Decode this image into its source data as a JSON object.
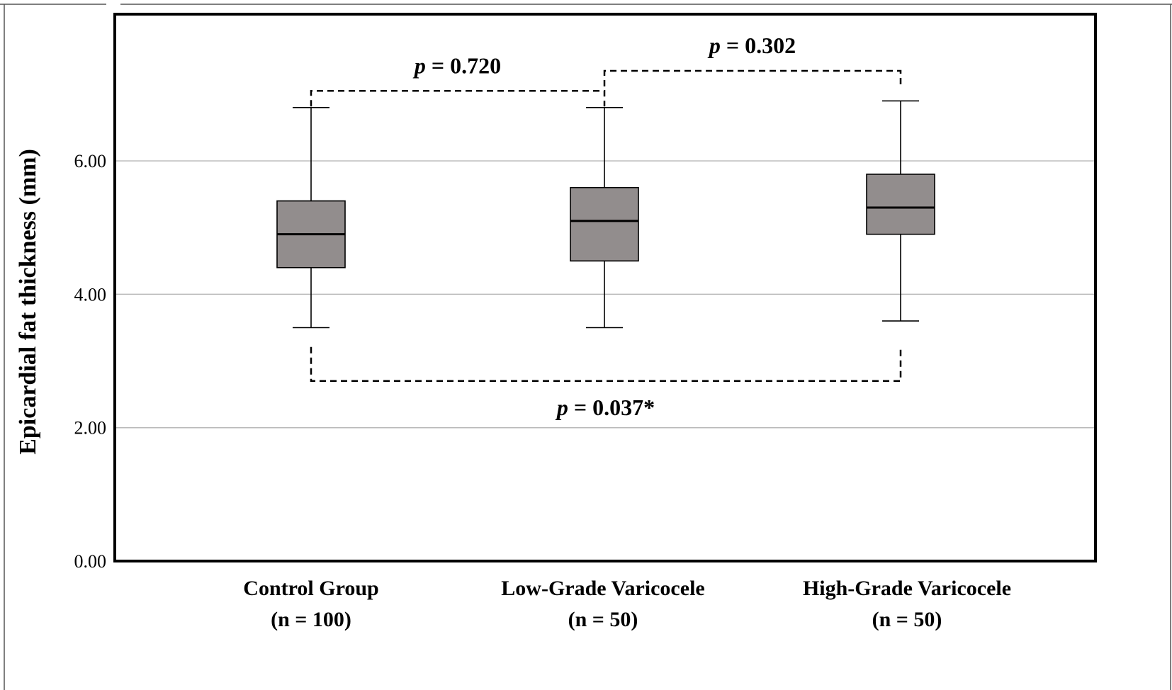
{
  "chart_data": {
    "type": "boxplot",
    "title": "",
    "xlabel": "",
    "ylabel": "Epicardial fat thickness (mm)",
    "ylim": [
      0,
      8.2
    ],
    "yticks": [
      "0.00",
      "2.00",
      "4.00",
      "6.00"
    ],
    "ytick_values": [
      0,
      2,
      4,
      6
    ],
    "grid": true,
    "box_color": "#928d8d",
    "categories": [
      {
        "name": "Control Group",
        "n": "(n = 100)"
      },
      {
        "name": "Low-Grade Varicocele",
        "n": "(n = 50)"
      },
      {
        "name": "High-Grade Varicocele",
        "n": "(n = 50)"
      }
    ],
    "boxes": [
      {
        "whisker_low": 3.5,
        "q1": 4.4,
        "median": 4.9,
        "q3": 5.4,
        "whisker_high": 6.8
      },
      {
        "whisker_low": 3.5,
        "q1": 4.5,
        "median": 5.1,
        "q3": 5.6,
        "whisker_high": 6.8
      },
      {
        "whisker_low": 3.6,
        "q1": 4.9,
        "median": 5.3,
        "q3": 5.8,
        "whisker_high": 6.9
      }
    ],
    "comparisons": [
      {
        "from": 0,
        "to": 1,
        "p_label": "p",
        "p_value": " = 0.720",
        "bracket_y": 7.05,
        "side": "top"
      },
      {
        "from": 1,
        "to": 2,
        "p_label": "p",
        "p_value": " = 0.302",
        "bracket_y": 7.35,
        "side": "top"
      },
      {
        "from": 0,
        "to": 2,
        "p_label": "p",
        "p_value": " = 0.037*",
        "bracket_y": 2.7,
        "side": "bottom"
      }
    ]
  }
}
